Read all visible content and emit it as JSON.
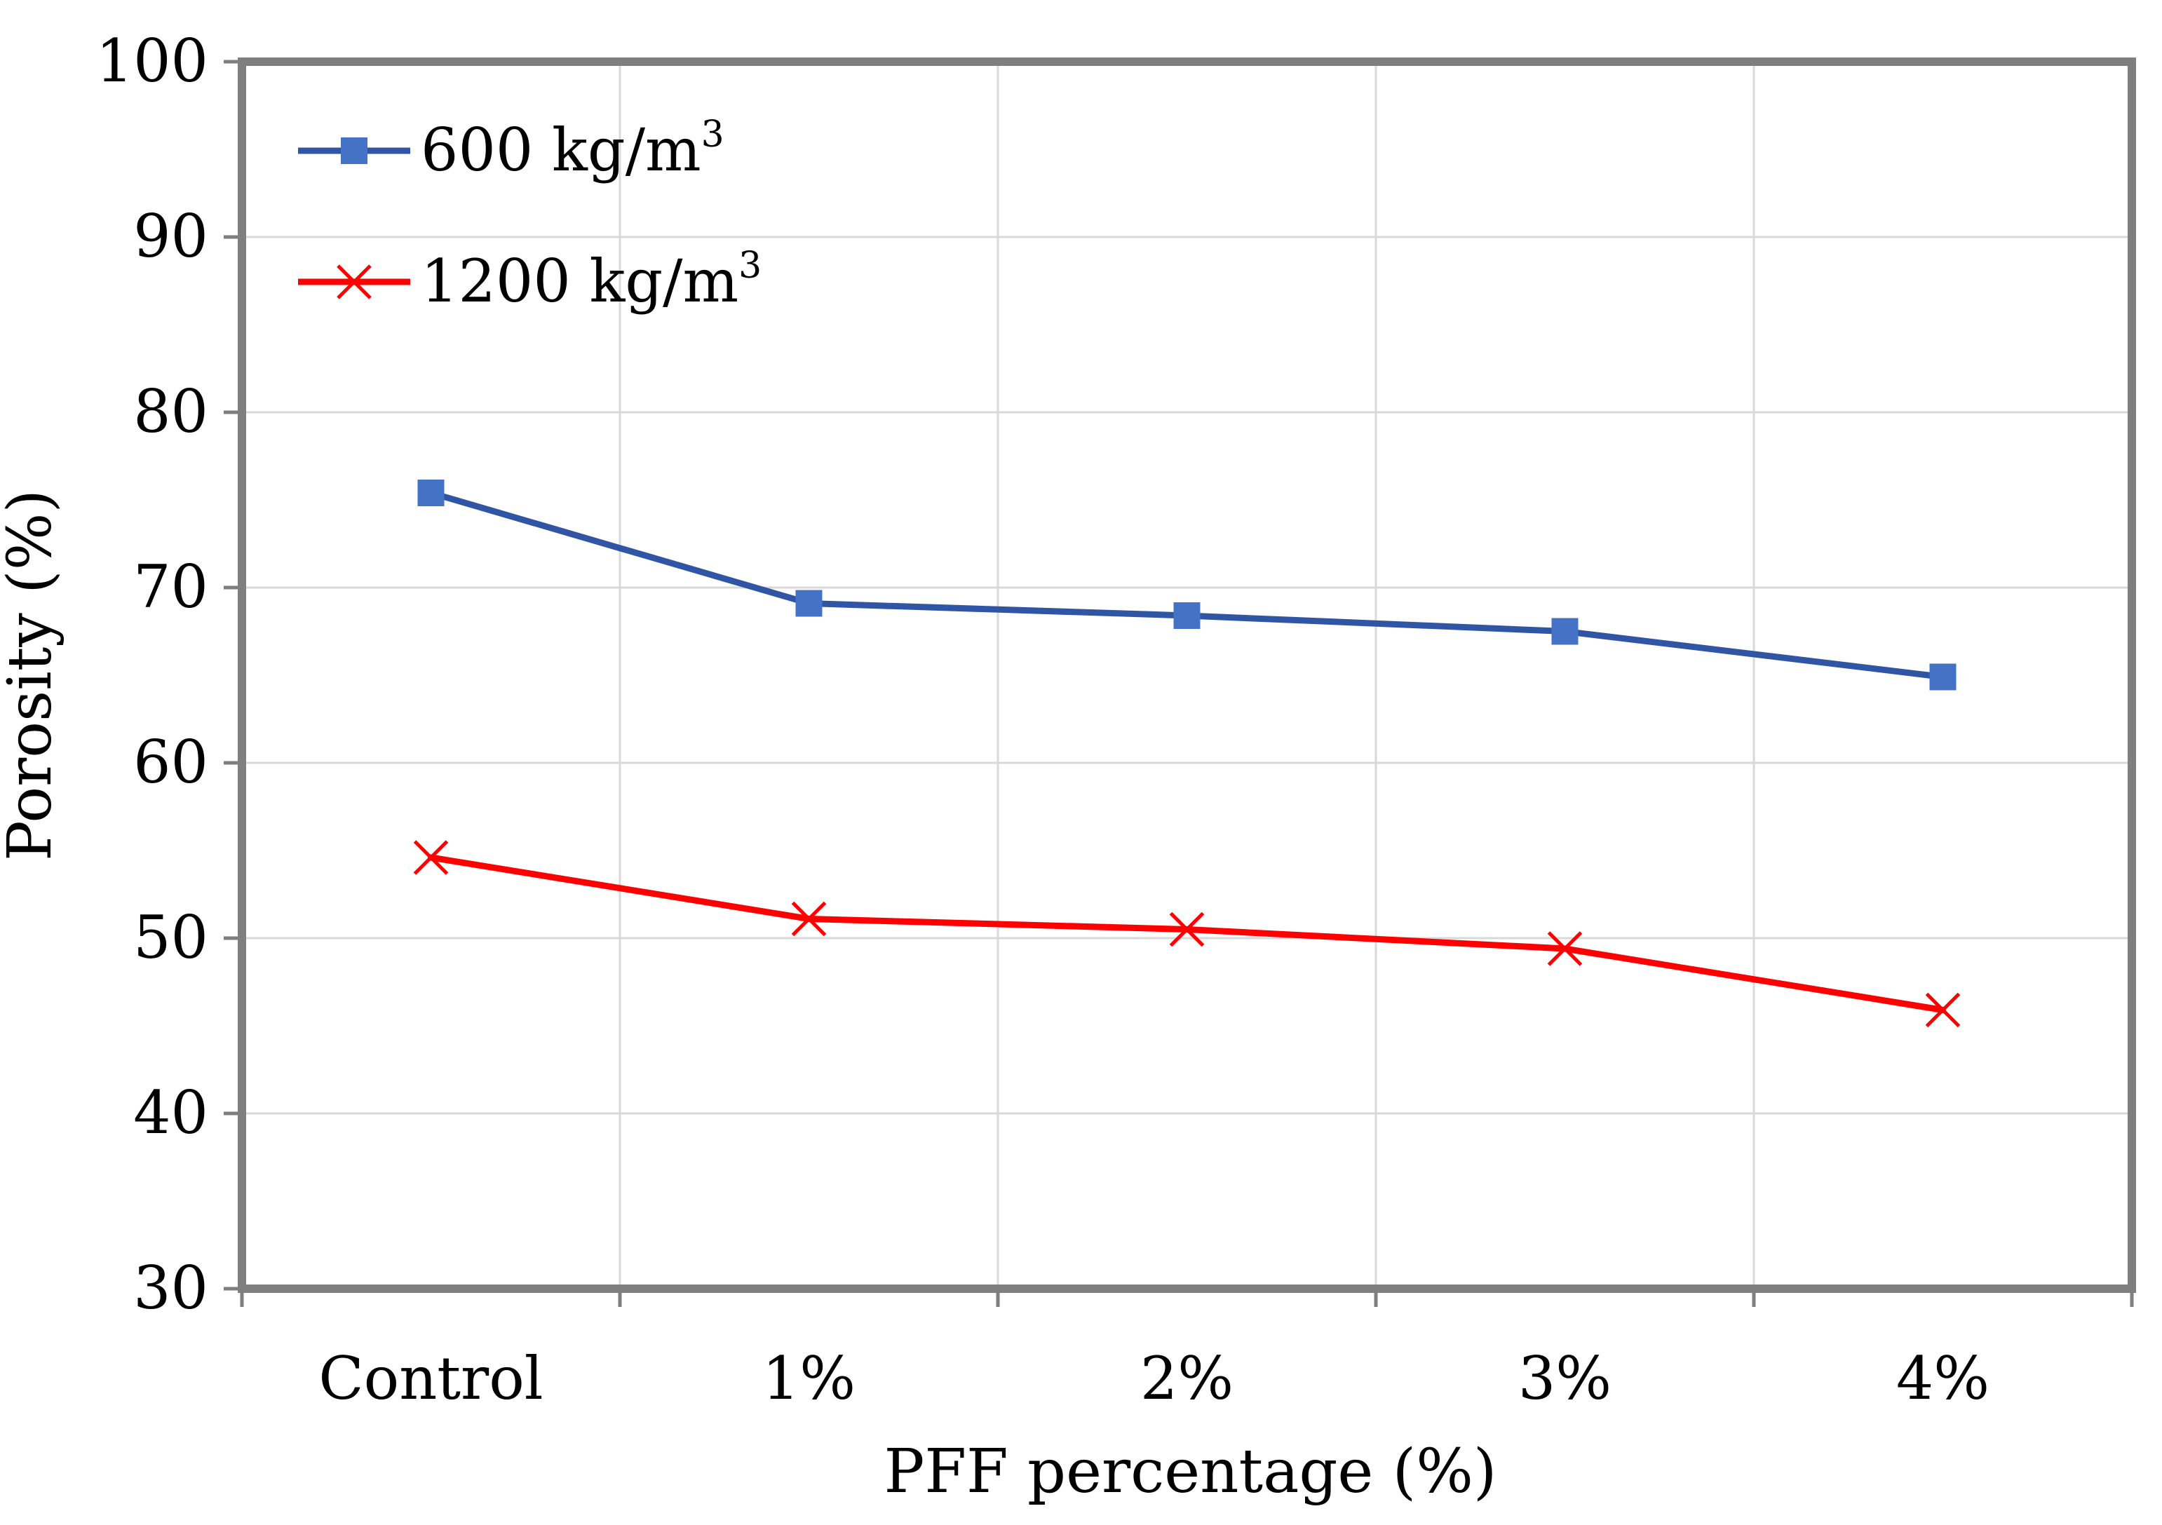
{
  "chart_data": {
    "type": "line",
    "title": "",
    "xlabel": "PFF percentage (%)",
    "ylabel": "Porosity (%)",
    "categories": [
      "Control",
      "1%",
      "2%",
      "3%",
      "4%"
    ],
    "ylim": [
      30,
      100
    ],
    "yticks": [
      30,
      40,
      50,
      60,
      70,
      80,
      90,
      100
    ],
    "grid": true,
    "legend_position": "top-left",
    "series": [
      {
        "name": "600 kg/m",
        "superscript": "3",
        "color": "#2F55A4",
        "marker_color": "#4472C4",
        "marker": "square",
        "values": [
          75.4,
          69.1,
          68.4,
          67.5,
          64.9
        ]
      },
      {
        "name": "1200 kg/m",
        "superscript": "3",
        "color": "#FF0000",
        "marker_color": "#FF0000",
        "marker": "x",
        "values": [
          54.6,
          51.1,
          50.5,
          49.4,
          45.9
        ]
      }
    ]
  }
}
